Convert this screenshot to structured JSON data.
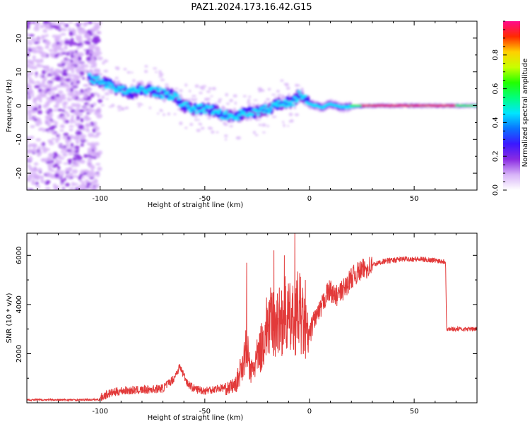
{
  "figure_title": "PAZ1.2024.173.16.42.G15",
  "colors": {
    "snr_line": "#e23a3a",
    "axis": "#000000",
    "colormap": [
      "#ffffff",
      "#d8b4f8",
      "#8a2be2",
      "#3b18ff",
      "#0a73ff",
      "#00e5ff",
      "#00ff80",
      "#22ff00",
      "#c8ff00",
      "#ffd000",
      "#ff2a00",
      "#ff0a8c"
    ]
  },
  "chart_data": [
    {
      "type": "heatmap",
      "xlabel": "Height of straight line (km)",
      "ylabel": "Frequency (Hz)",
      "xlim": [
        -135,
        80
      ],
      "ylim": [
        -25,
        25
      ],
      "xticks": [
        -100,
        -50,
        0,
        50
      ],
      "yticks": [
        -20,
        -10,
        0,
        10,
        20
      ],
      "grid": false,
      "ridge": {
        "x": [
          -105,
          -100,
          -95,
          -90,
          -85,
          -80,
          -75,
          -70,
          -65,
          -60,
          -55,
          -50,
          -45,
          -40,
          -35,
          -30,
          -25,
          -20,
          -15,
          -10,
          -7,
          -5,
          -2,
          0,
          3,
          6,
          10,
          15,
          20,
          30,
          40,
          50,
          60,
          70,
          80
        ],
        "y": [
          8.5,
          7,
          6,
          4.5,
          4,
          5,
          4.5,
          3.5,
          3,
          0,
          -1,
          -1,
          -1.5,
          -3,
          -3,
          -2,
          -2,
          -1,
          0.5,
          1,
          1.5,
          3,
          2.5,
          0.5,
          0,
          -0.5,
          0.5,
          -0.5,
          -0.3,
          0,
          0,
          0,
          0,
          0,
          0
        ]
      },
      "colorbar": {
        "label": "Normalized spectral amplitude",
        "range": [
          0,
          1
        ],
        "ticks": [
          0.0,
          0.2,
          0.4,
          0.6,
          0.8
        ]
      }
    },
    {
      "type": "line",
      "xlabel": "Height of straight line (km)",
      "ylabel": "SNR (10 * v/v)",
      "xlim": [
        -135,
        80
      ],
      "ylim": [
        0,
        6900
      ],
      "xticks": [
        -100,
        -50,
        0,
        50
      ],
      "yticks": [
        2000,
        4000,
        6000
      ],
      "grid": false,
      "series": [
        {
          "x": [
            -135,
            -120,
            -110,
            -100,
            -96,
            -90,
            -80,
            -75,
            -70,
            -65,
            -62,
            -58,
            -55,
            -50,
            -45,
            -40,
            -35,
            -32,
            -30,
            -28,
            -25,
            -22,
            -20,
            -17,
            -15,
            -12,
            -10,
            -8,
            -5,
            -3,
            -1,
            0,
            2,
            5,
            8,
            10,
            12,
            15,
            18,
            20,
            25,
            30,
            35,
            40,
            45,
            50,
            55,
            60,
            64,
            65,
            65.5,
            70,
            75,
            80
          ],
          "y": [
            120,
            120,
            120,
            130,
            300,
            420,
            450,
            480,
            520,
            900,
            1400,
            700,
            500,
            420,
            500,
            550,
            750,
            1600,
            2200,
            1200,
            1800,
            2500,
            3200,
            3300,
            3200,
            3600,
            3400,
            3300,
            3800,
            3200,
            2600,
            2700,
            3400,
            3700,
            4400,
            4600,
            4300,
            4500,
            4800,
            5100,
            5400,
            5600,
            5750,
            5800,
            5850,
            5850,
            5820,
            5800,
            5750,
            5750,
            3000,
            3000,
            3000,
            3000
          ]
        }
      ]
    }
  ]
}
